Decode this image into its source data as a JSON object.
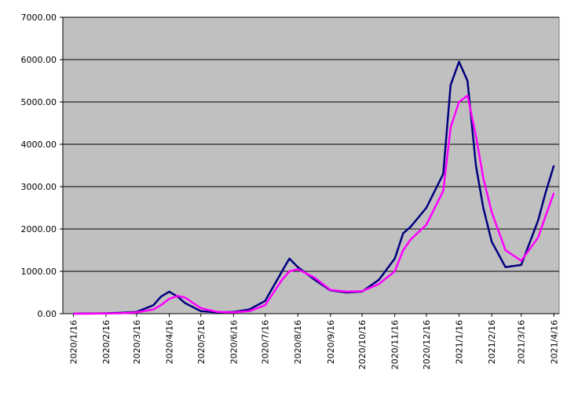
{
  "chart_data": {
    "type": "line",
    "x": [
      "2020/1/16",
      "2020/2/1",
      "2020/2/16",
      "2020/3/1",
      "2020/3/16",
      "2020/4/1",
      "2020/4/8",
      "2020/4/16",
      "2020/4/24",
      "2020/5/1",
      "2020/5/16",
      "2020/6/1",
      "2020/6/16",
      "2020/7/1",
      "2020/7/16",
      "2020/8/1",
      "2020/8/8",
      "2020/8/16",
      "2020/9/1",
      "2020/9/16",
      "2020/10/1",
      "2020/10/16",
      "2020/11/1",
      "2020/11/16",
      "2020/11/24",
      "2020/12/1",
      "2020/12/16",
      "2021/1/1",
      "2021/1/8",
      "2021/1/16",
      "2021/1/24",
      "2021/2/1",
      "2021/2/8",
      "2021/2/16",
      "2021/3/1",
      "2021/3/16",
      "2021/4/1",
      "2021/4/8",
      "2021/4/16"
    ],
    "series": [
      {
        "color": "#000080",
        "values": [
          0,
          5,
          10,
          20,
          40,
          200,
          400,
          520,
          400,
          250,
          60,
          30,
          40,
          100,
          300,
          1000,
          1300,
          1100,
          800,
          550,
          500,
          520,
          800,
          1300,
          1900,
          2050,
          2500,
          3300,
          5400,
          5950,
          5500,
          3500,
          2500,
          1700,
          1100,
          1150,
          2200,
          2850,
          3500
        ]
      },
      {
        "color": "#ff00ff",
        "values": [
          0,
          0,
          5,
          10,
          30,
          100,
          200,
          350,
          420,
          380,
          130,
          40,
          30,
          60,
          200,
          800,
          1000,
          1050,
          850,
          560,
          520,
          530,
          700,
          1000,
          1500,
          1750,
          2100,
          2900,
          4400,
          5000,
          5150,
          4200,
          3200,
          2400,
          1500,
          1250,
          1800,
          2300,
          2850
        ]
      }
    ],
    "xlim": [
      "2020/1/6",
      "2021/4/21"
    ],
    "xticks": [
      "2020/1/16",
      "2020/2/16",
      "2020/3/16",
      "2020/4/16",
      "2020/5/16",
      "2020/6/16",
      "2020/7/16",
      "2020/8/16",
      "2020/9/16",
      "2020/10/16",
      "2020/11/16",
      "2020/12/16",
      "2021/1/16",
      "2021/2/16",
      "2021/3/16",
      "2021/4/16"
    ],
    "ylim": [
      0,
      7000
    ],
    "yticks": [
      {
        "value": 0,
        "label": "0.00"
      },
      {
        "value": 1000,
        "label": "1000.00"
      },
      {
        "value": 2000,
        "label": "2000.00"
      },
      {
        "value": 3000,
        "label": "3000.00"
      },
      {
        "value": 4000,
        "label": "4000.00"
      },
      {
        "value": 5000,
        "label": "5000.00"
      },
      {
        "value": 6000,
        "label": "6000.00"
      },
      {
        "value": 7000,
        "label": "7000.00"
      }
    ],
    "grid": true,
    "background": "#c0c0c0"
  }
}
